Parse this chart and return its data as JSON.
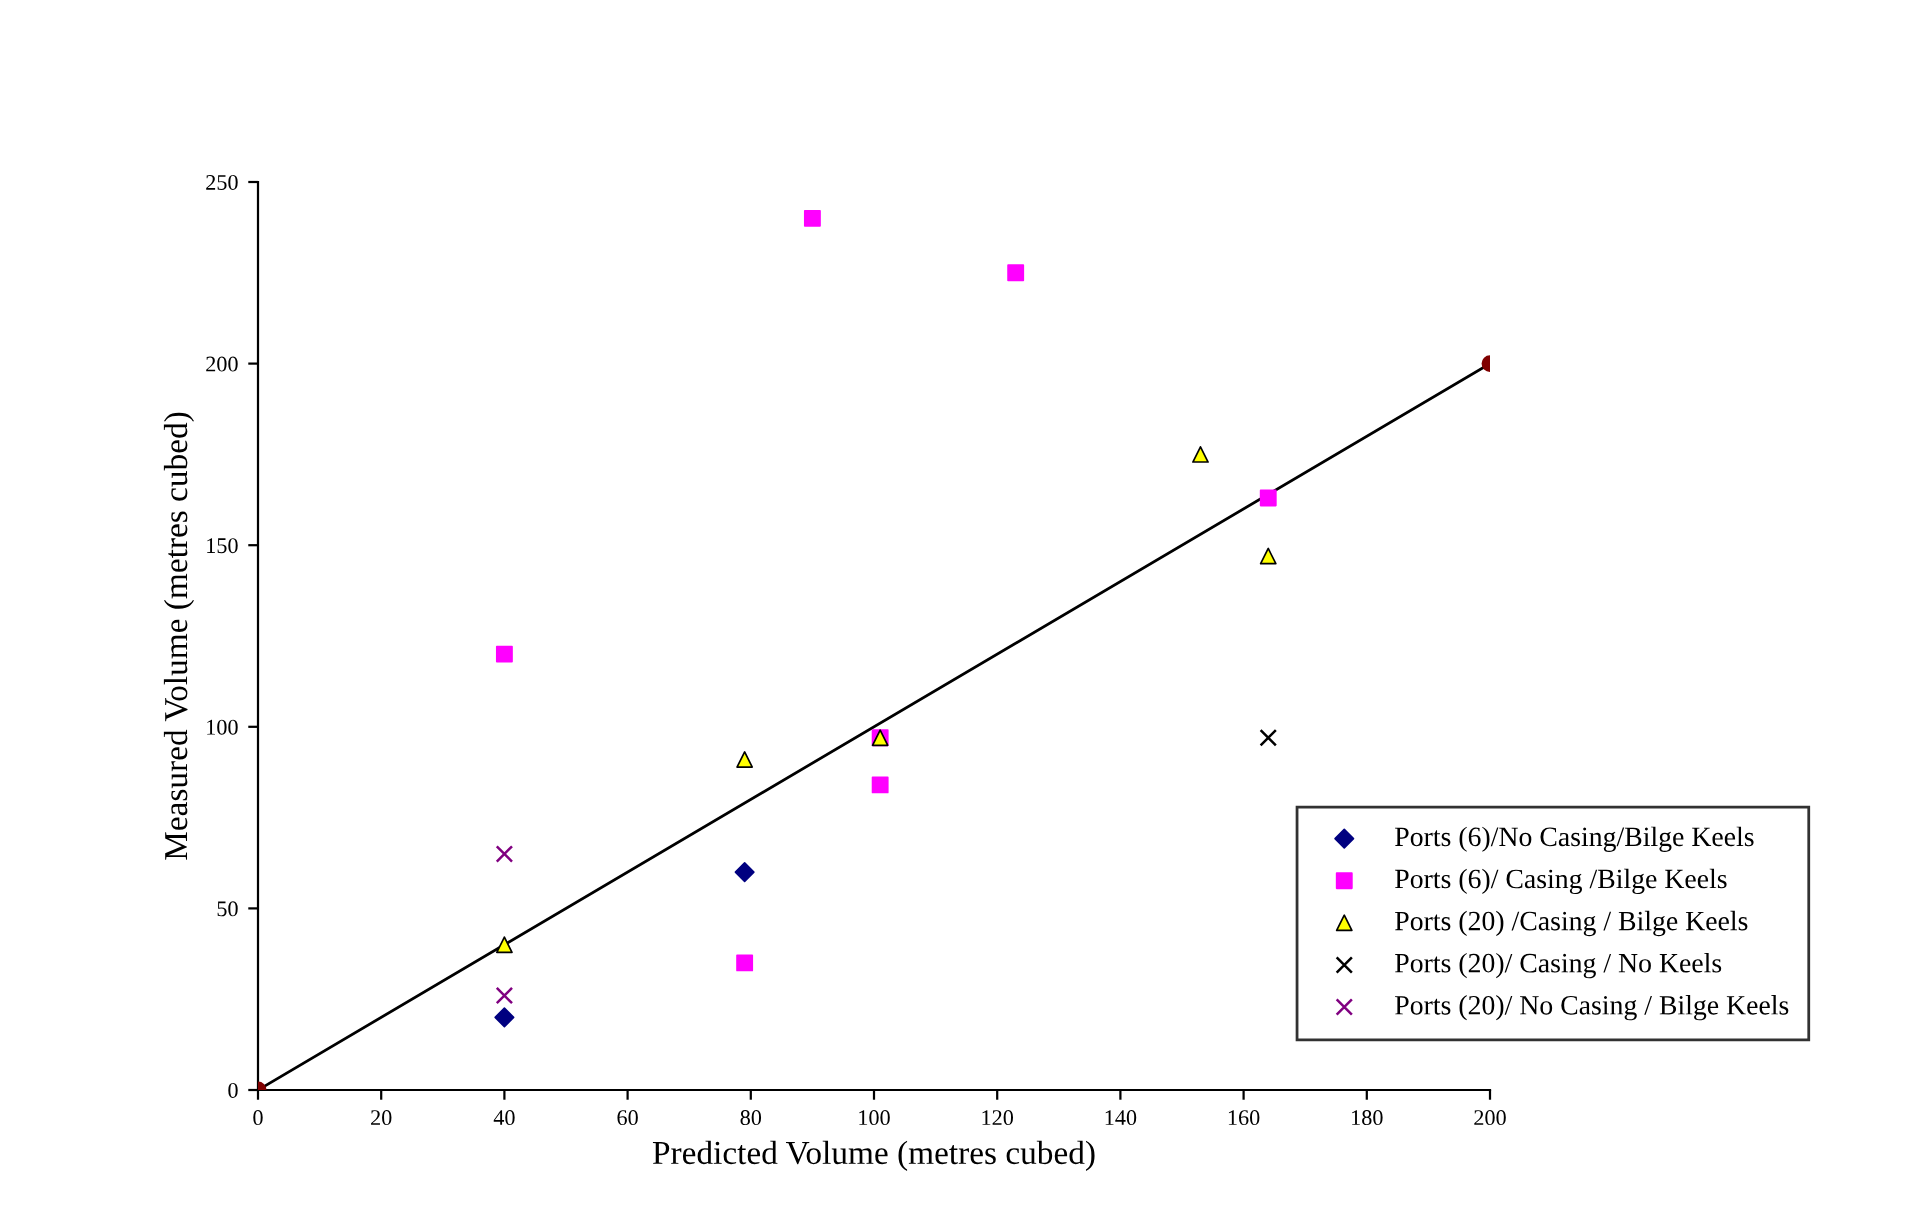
{
  "chart_data": {
    "type": "scatter",
    "xlabel": "Predicted Volume (metres cubed)",
    "ylabel": "Measured Volume (metres cubed)",
    "xlim": [
      0,
      200
    ],
    "ylim": [
      0,
      250
    ],
    "xticks": [
      0,
      20,
      40,
      60,
      80,
      100,
      120,
      140,
      160,
      180,
      200
    ],
    "yticks": [
      0,
      50,
      100,
      150,
      200,
      250
    ],
    "grid": false,
    "legend": "bottom right",
    "series": [
      {
        "name": "Ports (6)/No Casing/Bilge Keels",
        "color": "#000080",
        "marker": "diamond",
        "x": [
          40,
          79
        ],
        "values": [
          20,
          60
        ]
      },
      {
        "name": "Ports (6)/ Casing /Bilge Keels",
        "color": "#ff00ff",
        "marker": "square",
        "x": [
          40,
          90,
          123,
          101,
          101,
          79,
          164
        ],
        "values": [
          120,
          240,
          225,
          97,
          84,
          35,
          163
        ]
      },
      {
        "name": "Ports (20) /Casing / Bilge Keels",
        "color": "#ffff00",
        "marker": "triangle",
        "x": [
          40,
          79,
          101,
          153,
          164
        ],
        "values": [
          40,
          91,
          97,
          175,
          147
        ]
      },
      {
        "name": "Ports (20)/ Casing / No Keels",
        "color": "#000000",
        "marker": "cross",
        "x": [
          164
        ],
        "values": [
          97
        ]
      },
      {
        "name": "Ports (20)/ No Casing / Bilge Keels",
        "color": "#800080",
        "marker": "cross",
        "x": [
          40,
          40
        ],
        "values": [
          65,
          26
        ]
      },
      {
        "type": "line",
        "color": "#000000",
        "marker": "none",
        "x": [
          0,
          200
        ],
        "values": [
          0,
          200
        ]
      },
      {
        "color": "#800000",
        "marker": "circle",
        "x": [
          0,
          200
        ],
        "values": [
          0,
          200
        ]
      }
    ]
  }
}
